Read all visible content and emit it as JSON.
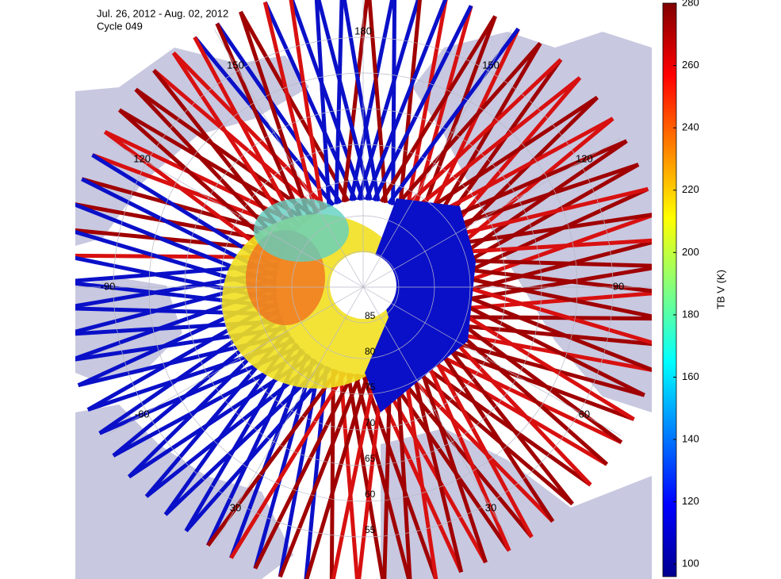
{
  "header": {
    "title": "Jul. 26, 2012 - Aug. 02, 2012",
    "subtitle": "Cycle 049"
  },
  "map": {
    "latitudes": [
      85,
      80,
      75,
      70,
      65,
      60,
      55
    ],
    "longitudes": [
      180,
      {
        "value": -150,
        "label": "150"
      },
      150,
      {
        "value": -120,
        "label": "120"
      },
      120,
      -90,
      90,
      -60,
      60,
      {
        "value": -30,
        "label": "30"
      },
      {
        "value": 30,
        "label": "30"
      }
    ]
  },
  "colorbar": {
    "label": "TB V (K)",
    "lim": [
      96,
      280
    ],
    "ticks": [
      100,
      120,
      140,
      160,
      180,
      200,
      220,
      240,
      260,
      280
    ]
  }
}
